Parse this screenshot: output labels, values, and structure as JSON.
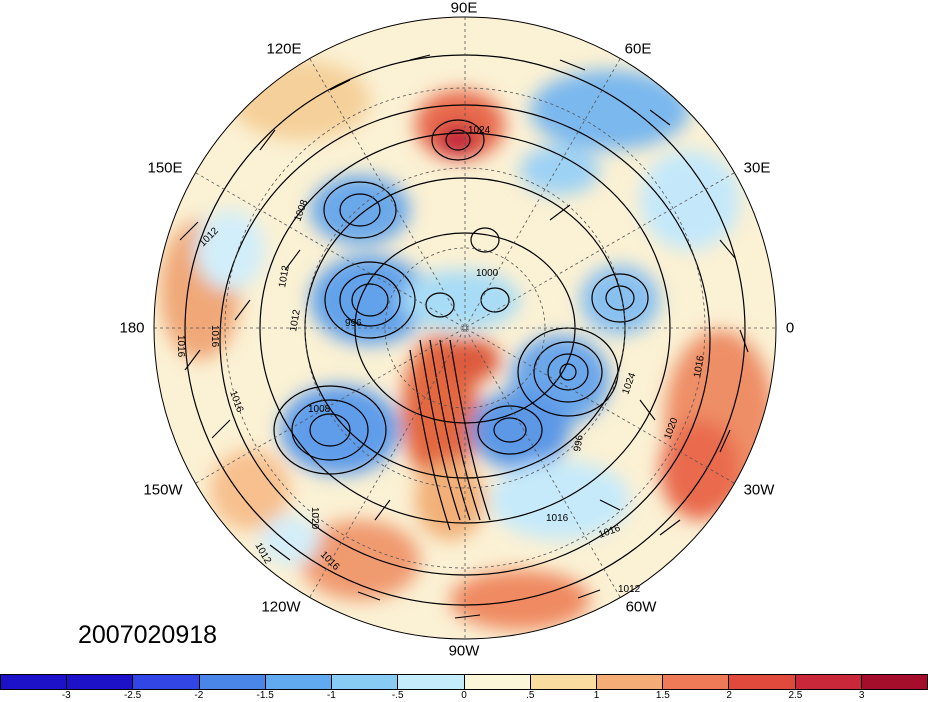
{
  "timestamp": "2007020918",
  "longitude_labels": [
    "90E",
    "60E",
    "30E",
    "0",
    "30W",
    "60W",
    "90W",
    "120W",
    "150W",
    "180",
    "150E",
    "120E"
  ],
  "contour_labels": [
    "1024",
    "1008",
    "1012",
    "1012",
    "1012",
    "1016",
    "1016",
    "1008",
    "1020",
    "1012",
    "1016",
    "1016",
    "1016",
    "1012",
    "1020",
    "1024",
    "1016",
    "1016",
    "996",
    "996",
    "1000"
  ],
  "colorbar": {
    "colors": [
      "#1e12c8",
      "#3246e6",
      "#4a86e8",
      "#62aaf0",
      "#88ccf4",
      "#c4ecfa",
      "#fbf6d8",
      "#f8dca0",
      "#f5ad78",
      "#ee7a58",
      "#e04a3c",
      "#c8283a",
      "#a40e2a"
    ],
    "labels": [
      "-3",
      "-2.5",
      "-2",
      "-1.5",
      "-1",
      "-.5",
      "0",
      ".5",
      "1",
      "1.5",
      "2",
      "2.5",
      "3"
    ]
  }
}
